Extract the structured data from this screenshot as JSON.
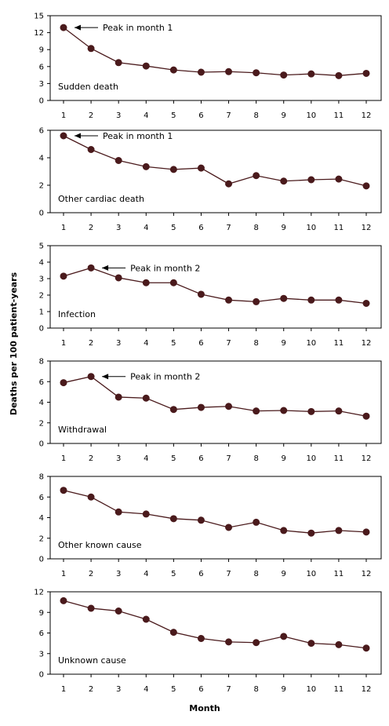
{
  "figure": {
    "ylabel": "Deaths per 100 patient-years",
    "xlabel": "Month",
    "line_color": "#4a1a1c",
    "marker_color": "#4a1a1c"
  },
  "chart_data": [
    {
      "type": "line",
      "panel_label": "Sudden death",
      "x": [
        1,
        2,
        3,
        4,
        5,
        6,
        7,
        8,
        9,
        10,
        11,
        12
      ],
      "values": [
        12.9,
        9.2,
        6.7,
        6.1,
        5.4,
        5.0,
        5.1,
        4.9,
        4.5,
        4.7,
        4.4,
        4.8
      ],
      "ylim": [
        0,
        15
      ],
      "yticks": [
        0,
        3,
        6,
        9,
        12,
        15
      ],
      "annotation": {
        "text": "Peak in month 1",
        "month": 1
      }
    },
    {
      "type": "line",
      "panel_label": "Other cardiac death",
      "x": [
        1,
        2,
        3,
        4,
        5,
        6,
        7,
        8,
        9,
        10,
        11,
        12
      ],
      "values": [
        5.6,
        4.6,
        3.8,
        3.35,
        3.15,
        3.25,
        2.1,
        2.7,
        2.3,
        2.4,
        2.45,
        1.95
      ],
      "ylim": [
        0,
        6
      ],
      "yticks": [
        0,
        2,
        4,
        6
      ],
      "annotation": {
        "text": "Peak in month 1",
        "month": 1
      }
    },
    {
      "type": "line",
      "panel_label": "Infection",
      "x": [
        1,
        2,
        3,
        4,
        5,
        6,
        7,
        8,
        9,
        10,
        11,
        12
      ],
      "values": [
        3.15,
        3.65,
        3.05,
        2.75,
        2.75,
        2.05,
        1.7,
        1.6,
        1.8,
        1.7,
        1.7,
        1.5
      ],
      "ylim": [
        0,
        5
      ],
      "yticks": [
        0,
        1,
        2,
        3,
        4,
        5
      ],
      "annotation": {
        "text": "Peak in month 2",
        "month": 2
      }
    },
    {
      "type": "line",
      "panel_label": "Withdrawal",
      "x": [
        1,
        2,
        3,
        4,
        5,
        6,
        7,
        8,
        9,
        10,
        11,
        12
      ],
      "values": [
        5.9,
        6.5,
        4.5,
        4.4,
        3.3,
        3.5,
        3.6,
        3.15,
        3.2,
        3.1,
        3.15,
        2.65
      ],
      "ylim": [
        0,
        8
      ],
      "yticks": [
        0,
        2,
        4,
        6,
        8
      ],
      "annotation": {
        "text": "Peak in month 2",
        "month": 2
      }
    },
    {
      "type": "line",
      "panel_label": "Other known cause",
      "x": [
        1,
        2,
        3,
        4,
        5,
        6,
        7,
        8,
        9,
        10,
        11,
        12
      ],
      "values": [
        6.65,
        6.0,
        4.55,
        4.35,
        3.9,
        3.75,
        3.05,
        3.55,
        2.75,
        2.5,
        2.75,
        2.6
      ],
      "ylim": [
        0,
        8
      ],
      "yticks": [
        0,
        2,
        4,
        6,
        8
      ]
    },
    {
      "type": "line",
      "panel_label": "Unknown cause",
      "x": [
        1,
        2,
        3,
        4,
        5,
        6,
        7,
        8,
        9,
        10,
        11,
        12
      ],
      "values": [
        10.7,
        9.6,
        9.2,
        8.0,
        6.1,
        5.2,
        4.7,
        4.6,
        5.5,
        4.5,
        4.3,
        3.8
      ],
      "ylim": [
        0,
        12
      ],
      "yticks": [
        0,
        3,
        6,
        9,
        12
      ]
    }
  ]
}
